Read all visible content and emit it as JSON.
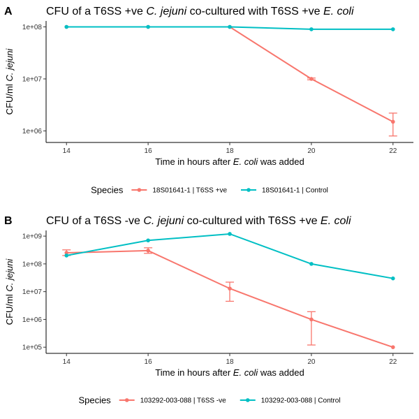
{
  "chart_data": [
    {
      "panel": "A",
      "type": "line",
      "title_parts": [
        {
          "text": "CFU of a T6SS +ve ",
          "italic": false
        },
        {
          "text": "C. jejuni",
          "italic": true
        },
        {
          "text": " co-cultured  with T6SS +ve ",
          "italic": false
        },
        {
          "text": "E. coli",
          "italic": true
        }
      ],
      "xlabel_parts": [
        {
          "text": "Time in hours after ",
          "italic": false
        },
        {
          "text": "E. coli",
          "italic": true
        },
        {
          "text": " was added",
          "italic": false
        }
      ],
      "ylabel_parts": [
        {
          "text": "CFU/ml ",
          "italic": false
        },
        {
          "text": "C. jejuni",
          "italic": true
        }
      ],
      "x_ticks": [
        14,
        16,
        18,
        20,
        22
      ],
      "xlim": [
        13.5,
        22.5
      ],
      "y_scale": "log10",
      "y_ticks": [
        {
          "value": 1000000,
          "label": "1e+06"
        },
        {
          "value": 10000000,
          "label": "1e+07"
        },
        {
          "value": 100000000,
          "label": "1e+08"
        }
      ],
      "ylim": [
        600000,
        130000000
      ],
      "legend_title": "Species",
      "legend_position": "bottom",
      "series": [
        {
          "name": "18S01641-1   | T6SS +ve",
          "color": "#F8766D",
          "points": [
            {
              "x": 14,
              "y": 100000000
            },
            {
              "x": 16,
              "y": 100000000
            },
            {
              "x": 18,
              "y": 100000000
            },
            {
              "x": 20,
              "y": 10000000,
              "ymin": 9600000,
              "ymax": 10400000
            },
            {
              "x": 22,
              "y": 1500000,
              "ymin": 800000,
              "ymax": 2200000
            }
          ]
        },
        {
          "name": "18S01641-1   | Control",
          "color": "#00BFC4",
          "points": [
            {
              "x": 14,
              "y": 100000000
            },
            {
              "x": 16,
              "y": 100000000
            },
            {
              "x": 18,
              "y": 100000000
            },
            {
              "x": 20,
              "y": 90000000
            },
            {
              "x": 22,
              "y": 90000000
            }
          ]
        }
      ]
    },
    {
      "panel": "B",
      "type": "line",
      "title_parts": [
        {
          "text": "CFU of a T6SS -ve  ",
          "italic": false
        },
        {
          "text": "C. jejuni",
          "italic": true
        },
        {
          "text": " co-cultured  with T6SS +ve ",
          "italic": false
        },
        {
          "text": "E. coli",
          "italic": true
        }
      ],
      "xlabel_parts": [
        {
          "text": "Time in hours after ",
          "italic": false
        },
        {
          "text": "E. coli",
          "italic": true
        },
        {
          "text": " was added",
          "italic": false
        }
      ],
      "ylabel_parts": [
        {
          "text": "CFU/ml ",
          "italic": false
        },
        {
          "text": "C. jejuni",
          "italic": true
        }
      ],
      "x_ticks": [
        14,
        16,
        18,
        20,
        22
      ],
      "xlim": [
        13.5,
        22.5
      ],
      "y_scale": "log10",
      "y_ticks": [
        {
          "value": 100000,
          "label": "1e+05"
        },
        {
          "value": 1000000,
          "label": "1e+06"
        },
        {
          "value": 10000000,
          "label": "1e+07"
        },
        {
          "value": 100000000,
          "label": "1e+08"
        },
        {
          "value": 1000000000,
          "label": "1e+09"
        }
      ],
      "ylim": [
        60000,
        1600000000
      ],
      "legend_title": "Species",
      "legend_position": "bottom",
      "series": [
        {
          "name": "103292-003-088    | T6SS -ve",
          "color": "#F8766D",
          "points": [
            {
              "x": 14,
              "y": 250000000,
              "ymin": 200000000,
              "ymax": 320000000
            },
            {
              "x": 16,
              "y": 300000000,
              "ymin": 240000000,
              "ymax": 380000000
            },
            {
              "x": 18,
              "y": 13000000,
              "ymin": 4500000,
              "ymax": 22000000
            },
            {
              "x": 20,
              "y": 1000000,
              "ymin": 120000,
              "ymax": 1900000
            },
            {
              "x": 22,
              "y": 100000
            }
          ]
        },
        {
          "name": "103292-003-088    | Control",
          "color": "#00BFC4",
          "points": [
            {
              "x": 14,
              "y": 200000000
            },
            {
              "x": 16,
              "y": 700000000
            },
            {
              "x": 18,
              "y": 1200000000
            },
            {
              "x": 20,
              "y": 100000000
            },
            {
              "x": 22,
              "y": 30000000
            }
          ]
        }
      ]
    }
  ]
}
